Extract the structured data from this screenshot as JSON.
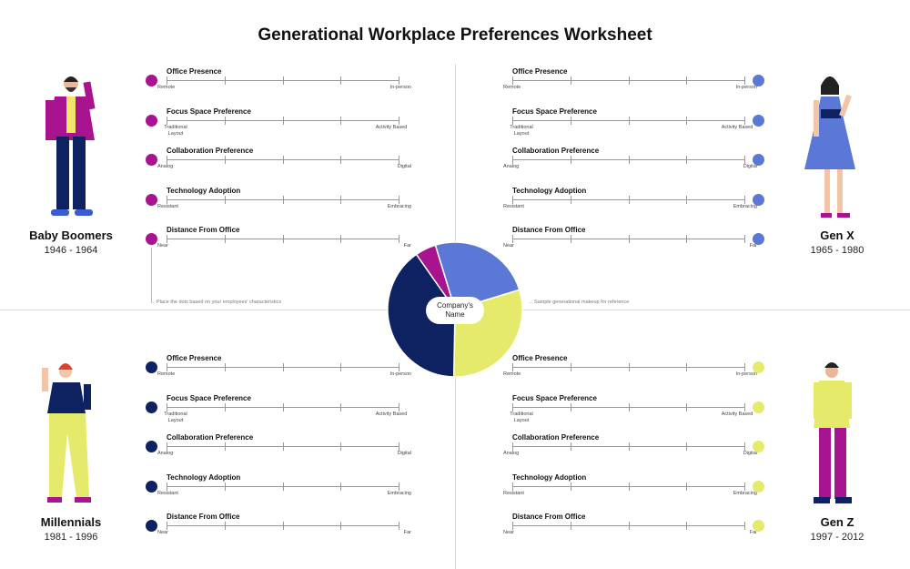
{
  "title": "Generational Workplace Preferences Worksheet",
  "scales": [
    {
      "title": "Office Presence",
      "left": "Remote",
      "right": "In-person"
    },
    {
      "title": "Focus Space Preference",
      "left": "Traditional Layout",
      "right": "Activity Based"
    },
    {
      "title": "Collaboration Preference",
      "left": "Analog",
      "right": "Digital"
    },
    {
      "title": "Technology Adoption",
      "left": "Resistant",
      "right": "Embracing"
    },
    {
      "title": "Distance From Office",
      "left": "Near",
      "right": "Far"
    }
  ],
  "generations": [
    {
      "name": "Baby Boomers",
      "years": "1946 - 1964",
      "color": "#a8148f",
      "share": 5
    },
    {
      "name": "Gen X",
      "years": "1965 - 1980",
      "color": "#5b78d6",
      "share": 25
    },
    {
      "name": "Millennials",
      "years": "1981 - 1996",
      "color": "#0e2160",
      "share": 40
    },
    {
      "name": "Gen Z",
      "years": "1997 - 2012",
      "color": "#e6ea6a",
      "share": 30
    }
  ],
  "notes": {
    "left": "Place the dots based on your employees' characteristics",
    "right": "Sample generational makeup for reference"
  },
  "center_label": "Company's Name"
}
